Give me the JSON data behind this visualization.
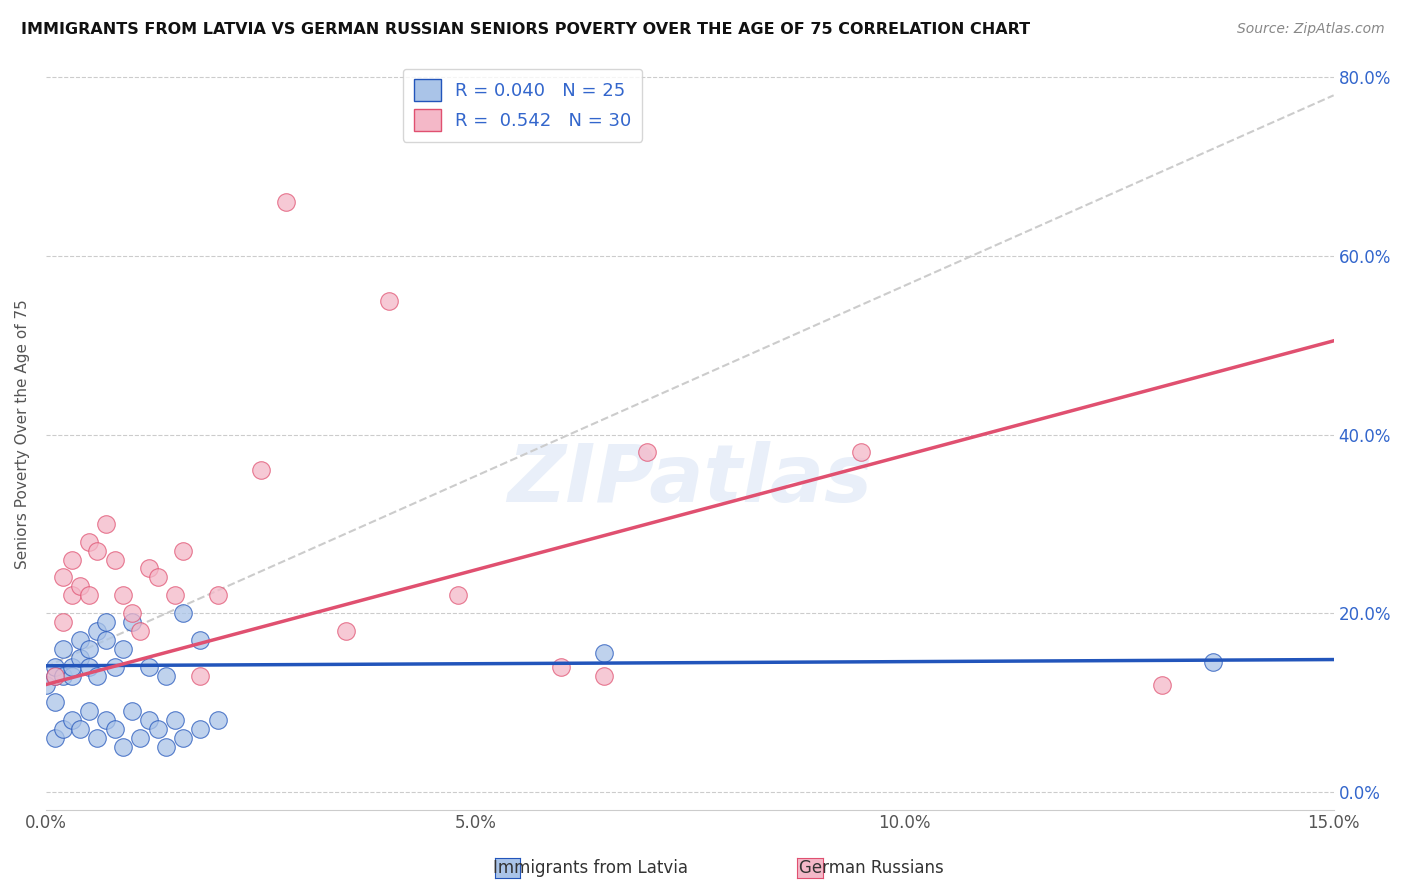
{
  "title": "IMMIGRANTS FROM LATVIA VS GERMAN RUSSIAN SENIORS POVERTY OVER THE AGE OF 75 CORRELATION CHART",
  "source": "Source: ZipAtlas.com",
  "ylabel": "Seniors Poverty Over the Age of 75",
  "legend_label_1": "Immigrants from Latvia",
  "legend_label_2": "German Russians",
  "R1": 0.04,
  "N1": 25,
  "R2": 0.542,
  "N2": 30,
  "color1": "#aac4e8",
  "color2": "#f4b8c8",
  "line_color1": "#2255bb",
  "line_color2": "#e05070",
  "trend_line_color": "#cccccc",
  "xlim": [
    0.0,
    0.15
  ],
  "ylim": [
    -0.02,
    0.82
  ],
  "xtick_labels": [
    "0.0%",
    "5.0%",
    "10.0%",
    "15.0%"
  ],
  "xtick_values": [
    0.0,
    0.05,
    0.1,
    0.15
  ],
  "ytick_labels_right": [
    "0.0%",
    "20.0%",
    "40.0%",
    "60.0%",
    "80.0%"
  ],
  "ytick_values": [
    0.0,
    0.2,
    0.4,
    0.6,
    0.8
  ],
  "watermark": "ZIPatlas",
  "background_color": "#ffffff",
  "scatter1_x": [
    0.0,
    0.001,
    0.001,
    0.001,
    0.002,
    0.002,
    0.003,
    0.003,
    0.004,
    0.004,
    0.005,
    0.005,
    0.006,
    0.006,
    0.007,
    0.007,
    0.008,
    0.009,
    0.01,
    0.012,
    0.014,
    0.016,
    0.018,
    0.065,
    0.136
  ],
  "scatter1_y": [
    0.12,
    0.1,
    0.13,
    0.14,
    0.16,
    0.13,
    0.13,
    0.14,
    0.15,
    0.17,
    0.14,
    0.16,
    0.13,
    0.18,
    0.17,
    0.19,
    0.14,
    0.16,
    0.19,
    0.14,
    0.13,
    0.2,
    0.17,
    0.155,
    0.145
  ],
  "scatter1_y_neg": [
    0.06,
    0.07,
    0.05,
    0.08,
    0.07,
    0.09,
    0.06,
    0.08,
    0.07,
    0.1,
    0.09,
    0.06,
    0.08,
    0.07,
    0.05,
    0.09,
    0.06,
    0.08,
    0.07,
    0.05,
    0.06,
    0.08,
    0.07,
    0.0,
    0.0
  ],
  "scatter2_x": [
    0.001,
    0.002,
    0.002,
    0.003,
    0.003,
    0.004,
    0.005,
    0.005,
    0.006,
    0.007,
    0.008,
    0.009,
    0.01,
    0.011,
    0.012,
    0.013,
    0.015,
    0.016,
    0.018,
    0.02,
    0.025,
    0.028,
    0.035,
    0.04,
    0.048,
    0.06,
    0.065,
    0.07,
    0.095,
    0.13
  ],
  "scatter2_y": [
    0.13,
    0.19,
    0.24,
    0.22,
    0.26,
    0.23,
    0.28,
    0.22,
    0.27,
    0.3,
    0.26,
    0.22,
    0.2,
    0.18,
    0.25,
    0.24,
    0.22,
    0.27,
    0.13,
    0.22,
    0.36,
    0.66,
    0.18,
    0.55,
    0.22,
    0.14,
    0.13,
    0.38,
    0.38,
    0.12
  ],
  "pink_line_x0": 0.0,
  "pink_line_y0": 0.12,
  "pink_line_x1": 0.15,
  "pink_line_y1": 0.505,
  "blue_line_x0": 0.0,
  "blue_line_y0": 0.141,
  "blue_line_x1": 0.15,
  "blue_line_y1": 0.148,
  "gray_line_x0": 0.0,
  "gray_line_y0": 0.14,
  "gray_line_x1": 0.15,
  "gray_line_y1": 0.78
}
